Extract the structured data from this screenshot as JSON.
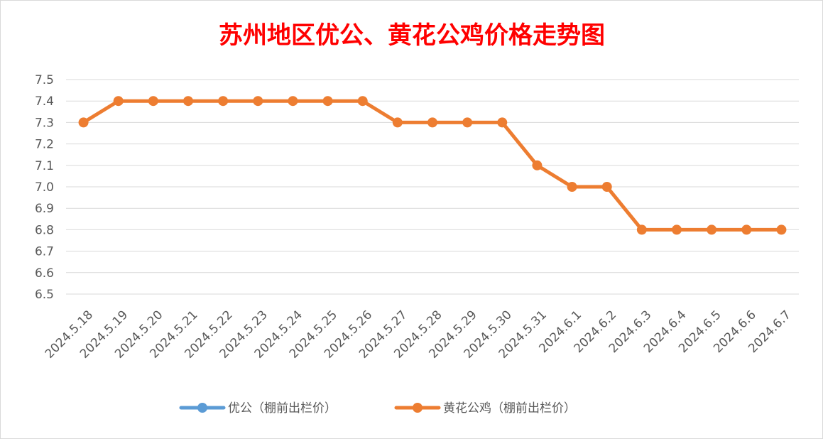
{
  "chart_data": {
    "type": "line",
    "title": "苏州地区优公、黄花公鸡价格走势图",
    "xlabel": "",
    "ylabel": "",
    "ylim": [
      6.5,
      7.5
    ],
    "y_ticks": [
      "7.5",
      "7.4",
      "7.3",
      "7.2",
      "7.1",
      "7.0",
      "6.9",
      "6.8",
      "6.7",
      "6.6",
      "6.5"
    ],
    "categories": [
      "2024.5.18",
      "2024.5.19",
      "2024.5.20",
      "2024.5.21",
      "2024.5.22",
      "2024.5.23",
      "2024.5.24",
      "2024.5.25",
      "2024.5.26",
      "2024.5.27",
      "2024.5.28",
      "2024.5.29",
      "2024.5.30",
      "2024.5.31",
      "2024.6.1",
      "2024.6.2",
      "2024.6.3",
      "2024.6.4",
      "2024.6.5",
      "2024.6.6",
      "2024.6.7"
    ],
    "series": [
      {
        "name": "优公（棚前出栏价）",
        "color": "#5b9bd5",
        "values": [
          null,
          null,
          null,
          null,
          null,
          null,
          null,
          null,
          null,
          null,
          null,
          null,
          null,
          null,
          null,
          null,
          null,
          null,
          null,
          null,
          null
        ]
      },
      {
        "name": "黄花公鸡（棚前出栏价）",
        "color": "#ed7d31",
        "values": [
          7.3,
          7.4,
          7.4,
          7.4,
          7.4,
          7.4,
          7.4,
          7.4,
          7.4,
          7.3,
          7.3,
          7.3,
          7.3,
          7.1,
          7.0,
          7.0,
          6.8,
          6.8,
          6.8,
          6.8,
          6.8
        ]
      }
    ],
    "grid": true,
    "legend_position": "bottom"
  }
}
